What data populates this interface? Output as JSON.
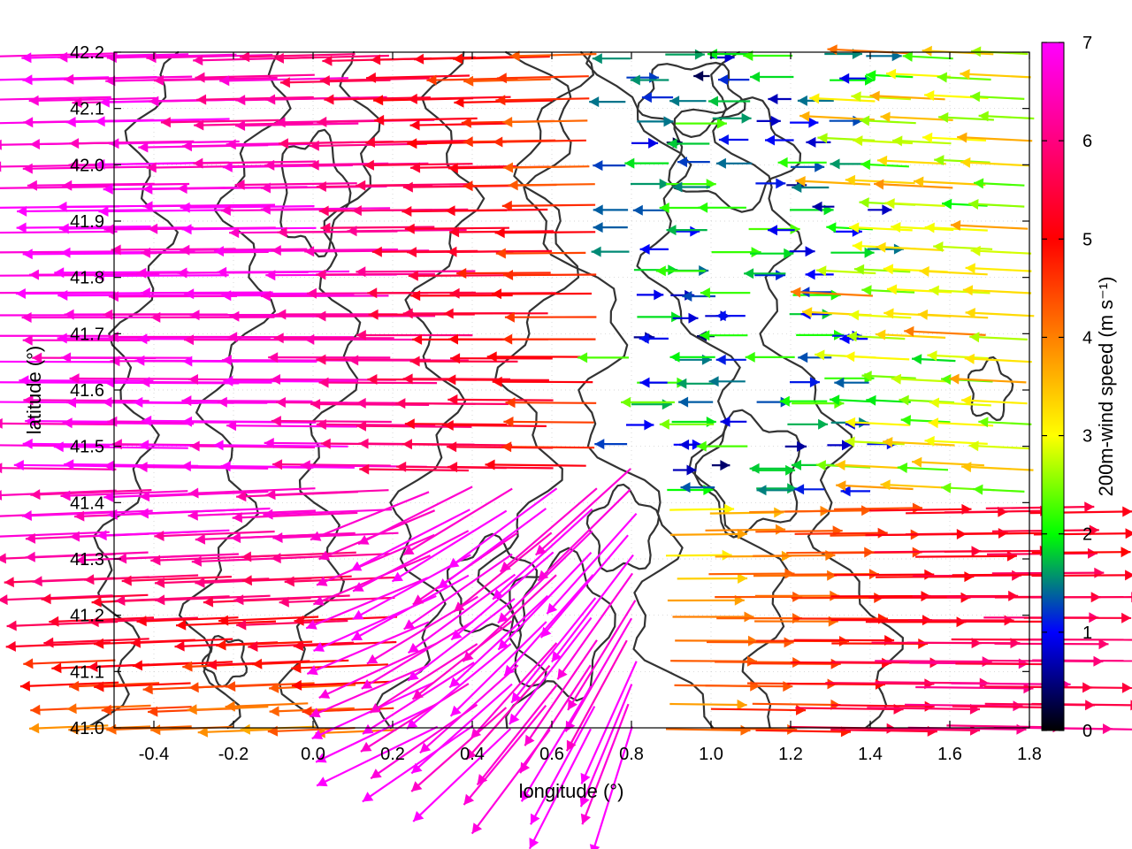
{
  "chart_data": {
    "type": "vector-field",
    "title": "",
    "xlabel": "longitude (°)",
    "ylabel": "latitude (°)",
    "xlim": [
      -0.5,
      1.8
    ],
    "ylim": [
      41.0,
      42.2
    ],
    "xticks": [
      "-0.4",
      "-0.2",
      "0.0",
      "0.2",
      "0.4",
      "0.6",
      "0.8",
      "1.0",
      "1.2",
      "1.4",
      "1.6",
      "1.8"
    ],
    "yticks": [
      "41.0",
      "41.1",
      "41.2",
      "41.3",
      "41.4",
      "41.5",
      "41.6",
      "41.7",
      "41.8",
      "41.9",
      "42.0",
      "42.1",
      "42.2"
    ],
    "grid": true,
    "colorbar": {
      "label": "200m-wind speed (m s⁻¹)",
      "range": [
        0,
        7
      ],
      "ticks": [
        "0",
        "1",
        "2",
        "3",
        "4",
        "5",
        "6",
        "7"
      ],
      "colors": [
        "#000000",
        "#0000ff",
        "#00ff00",
        "#ffff00",
        "#ff8000",
        "#ff0000",
        "#ff00ff"
      ]
    },
    "wind_regimes": [
      {
        "region": "west, north of 41.5°",
        "direction": "westward",
        "speed_range": [
          4.5,
          7
        ]
      },
      {
        "region": "central, 0.2°-0.8°, 41.0°-41.5°",
        "direction": "south-westward outflow",
        "speed_range": [
          6,
          7
        ]
      },
      {
        "region": "east, 0.8°-1.4°, 41.5°-42.2°",
        "direction": "weak / variable",
        "speed_range": [
          0,
          2.5
        ]
      },
      {
        "region": "south-east, 1.0°-1.8°, 41.0°-41.4°",
        "direction": "eastward",
        "speed_range": [
          3,
          5.5
        ]
      },
      {
        "region": "north-east, 1.4°-1.8°, 41.5°-42.2°",
        "direction": "westward",
        "speed_range": [
          2,
          4
        ]
      }
    ]
  }
}
